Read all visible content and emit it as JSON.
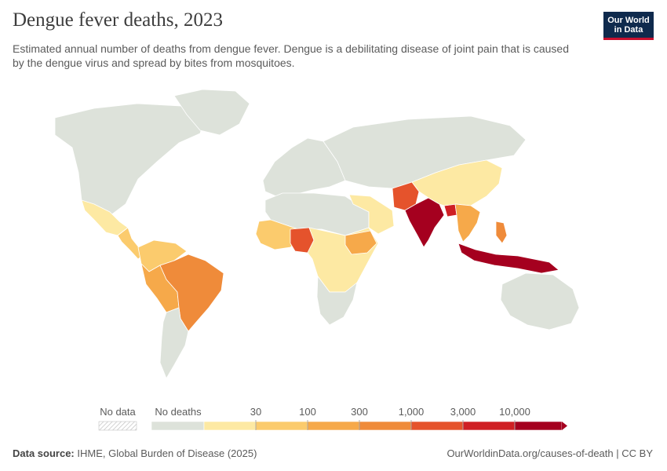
{
  "title": "Dengue fever deaths, 2023",
  "subtitle": "Estimated annual number of deaths from dengue fever. Dengue is a debilitating disease of joint pain that is caused by the dengue virus and spread by bites from mosquitoes.",
  "logo": {
    "line1": "Our World",
    "line2": "in Data",
    "bg": "#0f2a4d",
    "accent": "#c8102e"
  },
  "legend": {
    "no_data_label": "No data",
    "no_deaths_label": "No deaths",
    "ticks": [
      "30",
      "100",
      "300",
      "1,000",
      "3,000",
      "10,000"
    ],
    "colors": [
      "#dde2da",
      "#fde9a3",
      "#fbcb6d",
      "#f6a94a",
      "#ef8b3a",
      "#e5532c",
      "#cf1f24",
      "#a5001f"
    ]
  },
  "footer": {
    "source_label": "Data source:",
    "source_text": "IHME, Global Burden of Disease (2025)",
    "link_text": "OurWorldinData.org/causes-of-death",
    "license": "CC BY"
  },
  "map_regions": [
    {
      "name": "North America",
      "level": 0
    },
    {
      "name": "Greenland",
      "level": 0
    },
    {
      "name": "Mexico",
      "level": 1
    },
    {
      "name": "Central America",
      "level": 2
    },
    {
      "name": "Colombia & Venezuela",
      "level": 2
    },
    {
      "name": "Peru & Bolivia",
      "level": 3
    },
    {
      "name": "Brazil",
      "level": 4
    },
    {
      "name": "Southern South America",
      "level": 0
    },
    {
      "name": "Europe",
      "level": 0
    },
    {
      "name": "Russia & Central Asia",
      "level": 0
    },
    {
      "name": "North Africa",
      "level": 0
    },
    {
      "name": "West Africa",
      "level": 2
    },
    {
      "name": "Nigeria",
      "level": 5
    },
    {
      "name": "Central & East Africa",
      "level": 1
    },
    {
      "name": "Ethiopia",
      "level": 3
    },
    {
      "name": "Southern Africa",
      "level": 0
    },
    {
      "name": "Arabian Peninsula",
      "level": 1
    },
    {
      "name": "Pakistan",
      "level": 5
    },
    {
      "name": "India",
      "level": 7
    },
    {
      "name": "Bangladesh",
      "level": 6
    },
    {
      "name": "China",
      "level": 1
    },
    {
      "name": "Mainland Southeast Asia",
      "level": 3
    },
    {
      "name": "Philippines",
      "level": 4
    },
    {
      "name": "Indonesia",
      "level": 7
    },
    {
      "name": "Australia",
      "level": 0
    }
  ]
}
